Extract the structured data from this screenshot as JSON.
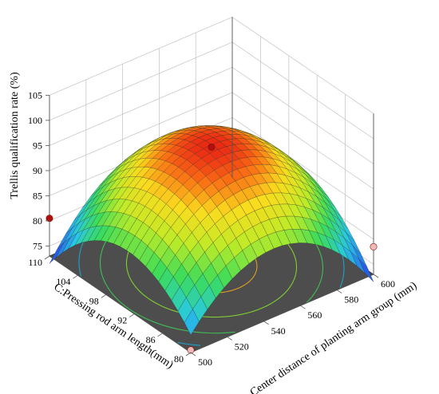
{
  "chart_data": {
    "type": "surface3d",
    "zlabel": "Trellis qualification rate (%)",
    "xlabel": "B: Center distance of planting arm group (mm)",
    "ylabel": "C:Pressing rod arm length(mm)",
    "z_ticks": [
      "75",
      "80",
      "85",
      "90",
      "95",
      "100",
      "105"
    ],
    "x_ticks": [
      "500",
      "520",
      "540",
      "560",
      "580",
      "600"
    ],
    "y_ticks": [
      "80",
      "86",
      "92",
      "98",
      "104",
      "110"
    ],
    "zlim": [
      73,
      105
    ],
    "xlim": [
      500,
      600
    ],
    "ylim": [
      80,
      110
    ],
    "surface": {
      "max_value": 97,
      "max_at": {
        "x": 550,
        "y": 95
      },
      "corners": [
        {
          "x": 500,
          "y": 80,
          "z": 74
        },
        {
          "x": 600,
          "y": 80,
          "z": 79
        },
        {
          "x": 500,
          "y": 110,
          "z": 79
        },
        {
          "x": 600,
          "y": 110,
          "z": 74
        }
      ],
      "colormap": "blue-green-yellow-red"
    },
    "design_points": [
      {
        "x": 550,
        "y": 95,
        "z": 96.5,
        "position": "above surface",
        "color": "#b01010"
      },
      {
        "x": 500,
        "y": 110,
        "z": 80.5,
        "position": "above surface",
        "color": "#b01010"
      },
      {
        "x": 600,
        "y": 80,
        "z": 78.5,
        "position": "below surface",
        "color": "#f2b8b8"
      },
      {
        "x": 500,
        "y": 80,
        "z": 73.5,
        "position": "below surface",
        "color": "#f2b8b8"
      }
    ],
    "contour_floor": {
      "background": "#4d4d4d",
      "levels": [
        80,
        85,
        90,
        95
      ],
      "colors": [
        "#1fa0c8",
        "#3fbf55",
        "#7fcf30",
        "#e0a020"
      ]
    },
    "grid": true
  }
}
